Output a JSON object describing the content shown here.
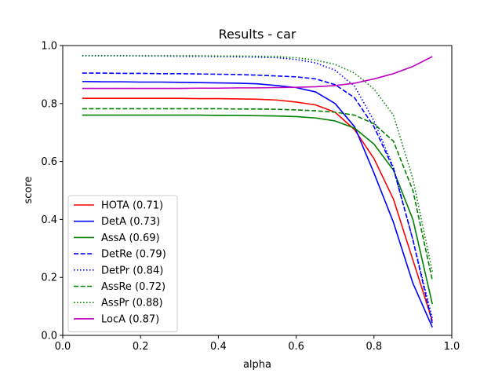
{
  "chart_data": {
    "type": "line",
    "title": "Results - car",
    "xlabel": "alpha",
    "ylabel": "score",
    "xlim": [
      0.0,
      1.0
    ],
    "ylim": [
      0.0,
      1.0
    ],
    "xticks": [
      "0.0",
      "0.2",
      "0.4",
      "0.6",
      "0.8",
      "1.0"
    ],
    "yticks": [
      "0.0",
      "0.2",
      "0.4",
      "0.6",
      "0.8",
      "1.0"
    ],
    "grid": false,
    "legend_position": "lower-left",
    "x": [
      0.05,
      0.1,
      0.15,
      0.2,
      0.25,
      0.3,
      0.35,
      0.4,
      0.45,
      0.5,
      0.55,
      0.6,
      0.65,
      0.7,
      0.75,
      0.8,
      0.85,
      0.9,
      0.95
    ],
    "series": [
      {
        "name": "HOTA (0.71)",
        "color": "#ff0000",
        "dash": "solid",
        "values": [
          0.818,
          0.818,
          0.818,
          0.818,
          0.818,
          0.818,
          0.817,
          0.817,
          0.816,
          0.815,
          0.812,
          0.805,
          0.795,
          0.77,
          0.71,
          0.61,
          0.47,
          0.26,
          0.05
        ]
      },
      {
        "name": "DetA (0.73)",
        "color": "#0000ff",
        "dash": "solid",
        "values": [
          0.876,
          0.875,
          0.875,
          0.874,
          0.874,
          0.873,
          0.872,
          0.871,
          0.87,
          0.868,
          0.862,
          0.855,
          0.84,
          0.8,
          0.72,
          0.56,
          0.39,
          0.18,
          0.028
        ]
      },
      {
        "name": "AssA (0.69)",
        "color": "#008000",
        "dash": "solid",
        "values": [
          0.76,
          0.76,
          0.76,
          0.76,
          0.76,
          0.76,
          0.76,
          0.759,
          0.759,
          0.758,
          0.757,
          0.755,
          0.75,
          0.74,
          0.715,
          0.66,
          0.57,
          0.4,
          0.108
        ]
      },
      {
        "name": "DetRe (0.79)",
        "color": "#0000ff",
        "dash": "dashed",
        "values": [
          0.905,
          0.905,
          0.904,
          0.904,
          0.903,
          0.903,
          0.902,
          0.901,
          0.9,
          0.898,
          0.895,
          0.892,
          0.885,
          0.865,
          0.82,
          0.72,
          0.575,
          0.33,
          0.04
        ]
      },
      {
        "name": "DetPr (0.84)",
        "color": "#0000ff",
        "dash": "dotted",
        "values": [
          0.965,
          0.965,
          0.965,
          0.964,
          0.964,
          0.963,
          0.963,
          0.962,
          0.961,
          0.96,
          0.958,
          0.952,
          0.94,
          0.915,
          0.86,
          0.74,
          0.58,
          0.33,
          0.058
        ]
      },
      {
        "name": "AssRe (0.72)",
        "color": "#008000",
        "dash": "dashed",
        "values": [
          0.782,
          0.782,
          0.782,
          0.782,
          0.782,
          0.782,
          0.782,
          0.782,
          0.781,
          0.781,
          0.78,
          0.778,
          0.775,
          0.77,
          0.76,
          0.73,
          0.67,
          0.5,
          0.19
        ]
      },
      {
        "name": "AssPr (0.88)",
        "color": "#008000",
        "dash": "dotted",
        "values": [
          0.965,
          0.965,
          0.965,
          0.965,
          0.965,
          0.965,
          0.965,
          0.964,
          0.964,
          0.963,
          0.962,
          0.958,
          0.95,
          0.935,
          0.905,
          0.85,
          0.76,
          0.54,
          0.22
        ]
      },
      {
        "name": "LocA (0.87)",
        "color": "#bf00bf",
        "dash": "solid",
        "values": [
          0.852,
          0.852,
          0.852,
          0.852,
          0.852,
          0.852,
          0.853,
          0.853,
          0.854,
          0.854,
          0.855,
          0.856,
          0.858,
          0.862,
          0.87,
          0.885,
          0.903,
          0.928,
          0.962
        ]
      }
    ]
  }
}
